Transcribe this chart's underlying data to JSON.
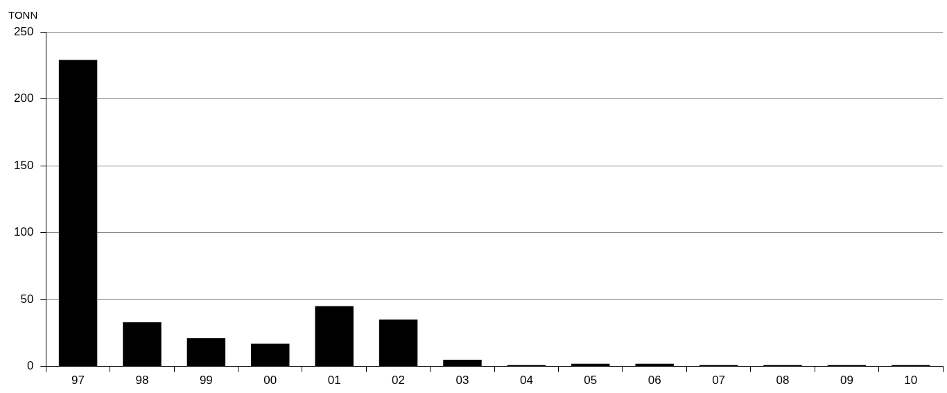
{
  "chart_data": {
    "type": "bar",
    "ylabel": "TONN",
    "categories": [
      "97",
      "98",
      "99",
      "00",
      "01",
      "02",
      "03",
      "04",
      "05",
      "06",
      "07",
      "08",
      "09",
      "10"
    ],
    "values": [
      229,
      33,
      21,
      17,
      45,
      35,
      5,
      1,
      2,
      2,
      1,
      1,
      1,
      1
    ],
    "color": "#000000",
    "ylim": [
      0,
      250
    ],
    "yticks": [
      0,
      50,
      100,
      150,
      200,
      250
    ],
    "grid": "y",
    "legend": false
  }
}
